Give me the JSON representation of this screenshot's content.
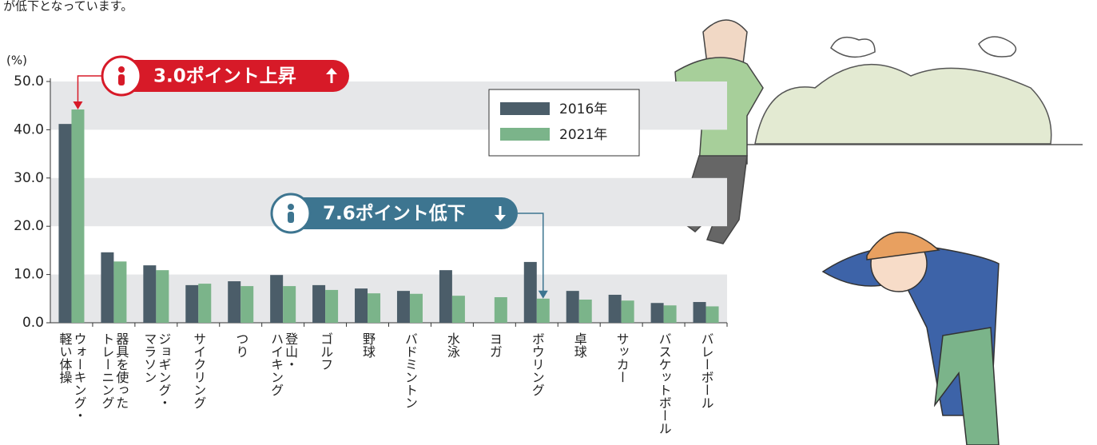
{
  "page_text": "が低下となっています。",
  "chart_data": {
    "type": "bar",
    "y_label": "(%)",
    "categories": [
      "ウォーキング・\n軽い体操",
      "器具を使った\nトレーニング",
      "ジョギング・\nマラソン",
      "サイクリング",
      "つり",
      "登山・\nハイキング",
      "ゴルフ",
      "野球",
      "バドミントン",
      "水泳",
      "ヨガ",
      "ボウリング",
      "卓球",
      "サッカー",
      "バスケットボール",
      "バレーボール"
    ],
    "series": [
      {
        "name": "2016年",
        "color": "#4b5d69",
        "values": [
          41.2,
          14.6,
          11.9,
          7.8,
          8.6,
          9.9,
          7.8,
          7.1,
          6.6,
          10.9,
          null,
          12.6,
          6.6,
          5.8,
          4.1,
          4.3
        ]
      },
      {
        "name": "2021年",
        "color": "#7bb48a",
        "values": [
          44.2,
          12.7,
          10.9,
          8.1,
          7.6,
          7.6,
          6.8,
          6.1,
          6.0,
          5.6,
          5.3,
          5.0,
          4.8,
          4.6,
          3.6,
          3.4
        ]
      }
    ],
    "ylim": [
      0,
      50
    ],
    "yticks": [
      {
        "value": 0,
        "label": "0.0"
      },
      {
        "value": 10,
        "label": "10.0"
      },
      {
        "value": 20,
        "label": "20.0"
      },
      {
        "value": 30,
        "label": "30.0"
      },
      {
        "value": 40,
        "label": "40.0"
      },
      {
        "value": 50,
        "label": "50.0"
      }
    ],
    "grid": "bands",
    "legend": "top-right",
    "annotations": [
      {
        "text": "3.0ポイント上昇",
        "color": "#d71a28",
        "category": 0
      },
      {
        "text": "7.6ポイント低下",
        "color": "#3d7590",
        "category": 11
      }
    ]
  }
}
